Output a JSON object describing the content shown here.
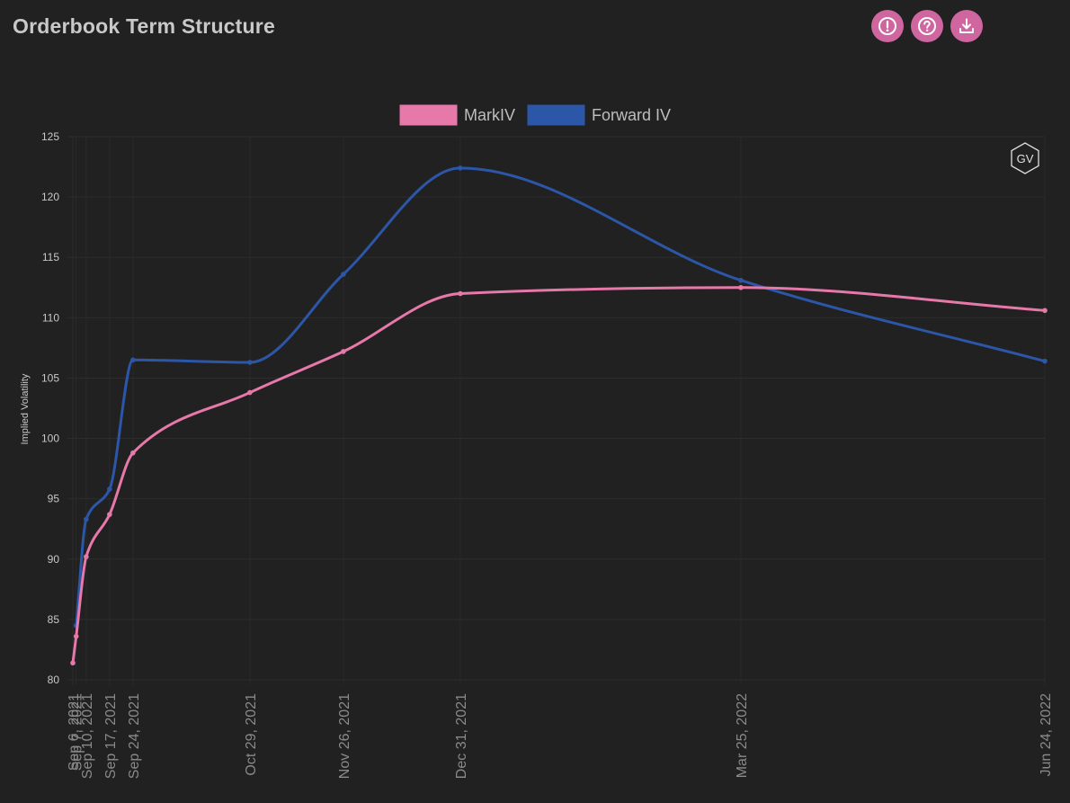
{
  "header": {
    "title": "Orderbook Term Structure"
  },
  "toolbar": {
    "buttons": [
      {
        "icon": "alert-icon"
      },
      {
        "icon": "help-icon"
      },
      {
        "icon": "download-icon"
      }
    ]
  },
  "watermark": {
    "text": "GV"
  },
  "colors": {
    "background": "#212121",
    "accent": "#d0669f",
    "markiv": "#e678aa",
    "forward_iv": "#2c56a8",
    "grid": "#2b2b2b"
  },
  "chart_data": {
    "type": "line",
    "title": "",
    "xlabel": "",
    "ylabel": "Implied Volatility",
    "ylim": [
      80,
      125
    ],
    "yticks": [
      80,
      85,
      90,
      95,
      100,
      105,
      110,
      115,
      120,
      125
    ],
    "x": [
      "2021-09-06",
      "2021-09-07",
      "2021-09-10",
      "2021-09-17",
      "2021-09-24",
      "2021-10-29",
      "2021-11-26",
      "2021-12-31",
      "2022-03-25",
      "2022-06-24"
    ],
    "x_tick_labels": [
      "Sep 6, 2021",
      "Sep 7, 2021",
      "Sep 10, 2021",
      "Sep 17, 2021",
      "Sep 24, 2021",
      "Oct 29, 2021",
      "Nov 26, 2021",
      "Dec 31, 2021",
      "Mar 25, 2022",
      "Jun 24, 2022"
    ],
    "legend_position": "top",
    "grid": true,
    "series": [
      {
        "name": "MarkIV",
        "color": "#e678aa",
        "values": [
          81.4,
          83.6,
          90.2,
          93.7,
          98.8,
          103.8,
          107.2,
          112.0,
          112.5,
          110.6
        ]
      },
      {
        "name": "Forward IV",
        "color": "#2c56a8",
        "values": [
          null,
          84.5,
          93.3,
          95.8,
          106.5,
          106.3,
          113.6,
          122.4,
          113.1,
          106.4
        ]
      }
    ]
  }
}
